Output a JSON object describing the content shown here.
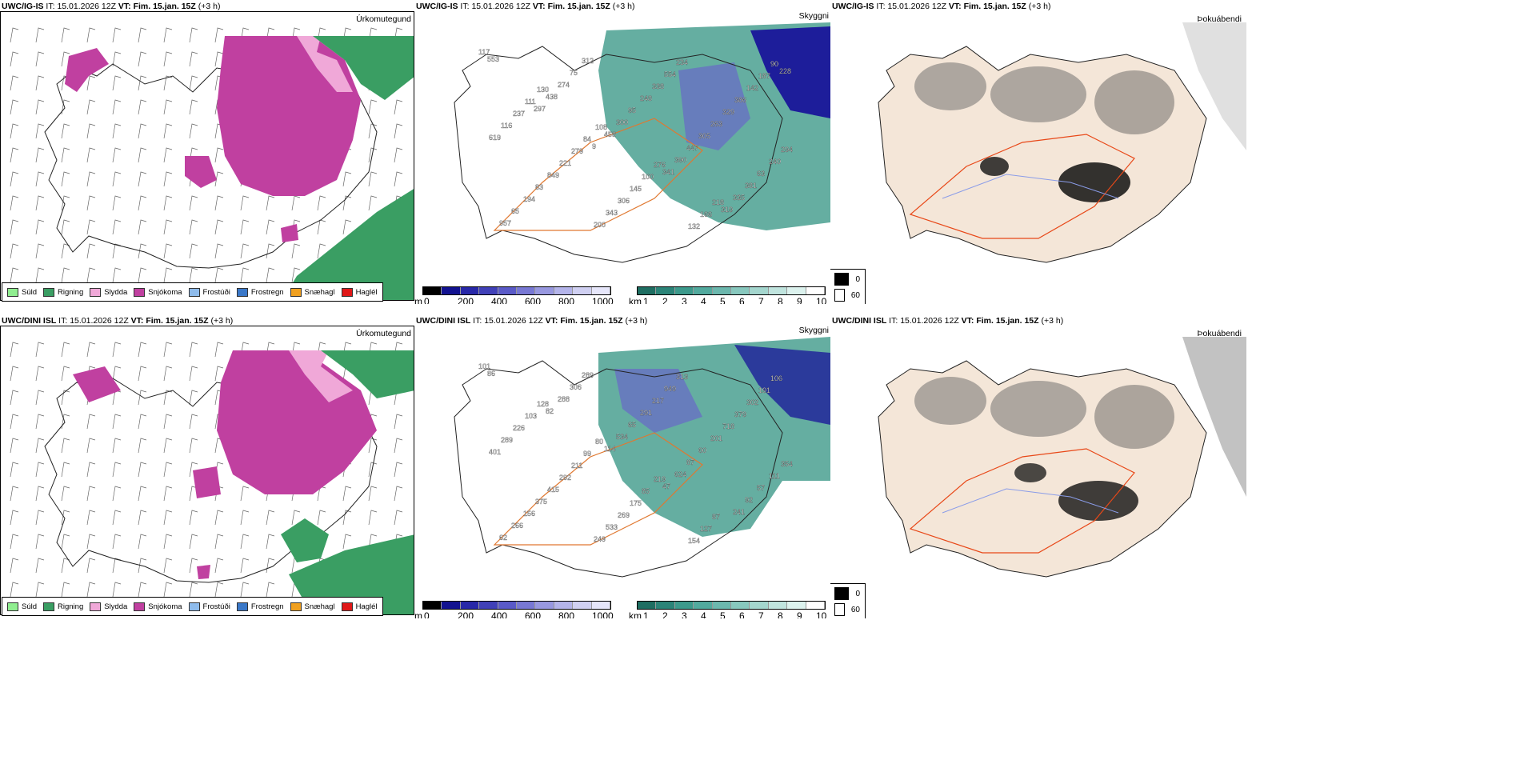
{
  "rows": [
    {
      "model": "UWC/IG-IS",
      "it_label": "IT:",
      "it_value": "15.01.2026 12Z",
      "vt_label": "VT:",
      "vt_value": "Fim. 15.jan. 15Z",
      "lead": "(+3 h)",
      "precip_labels": [
        "117",
        "130",
        "108",
        "276",
        "218",
        "90",
        "111",
        "84",
        "100",
        "166",
        "187",
        "237",
        "279",
        "145",
        "132",
        "142",
        "116",
        "221",
        "306",
        "234",
        "386",
        "619",
        "849",
        "343",
        "554",
        "329",
        "294",
        "83",
        "200",
        "338",
        "263",
        "240",
        "194",
        "312",
        "248",
        "305",
        "63",
        "65",
        "75",
        "95",
        "447",
        "381",
        "957",
        "274",
        "300",
        "390",
        "335",
        "553",
        "438",
        "458",
        "341",
        "319",
        "228",
        "297",
        "9"
      ]
    },
    {
      "model": "UWC/DINI ISL",
      "it_label": "IT:",
      "it_value": "15.01.2026 12Z",
      "vt_label": "VT:",
      "vt_value": "Fim. 15.jan. 15Z",
      "lead": "(+3 h)",
      "precip_labels": [
        "101",
        "128",
        "80",
        "219",
        "87",
        "106",
        "103",
        "99",
        "85",
        "127",
        "191",
        "226",
        "211",
        "175",
        "154",
        "302",
        "289",
        "292",
        "269",
        "313",
        "379",
        "401",
        "415",
        "533",
        "949",
        "718",
        "354",
        "375",
        "249",
        "217",
        "201",
        "111",
        "156",
        "289",
        "291",
        "60",
        "57",
        "266",
        "306",
        "65",
        "87",
        "92",
        "62",
        "288",
        "534",
        "624",
        "241",
        "86",
        "82",
        "114",
        "47"
      ]
    }
  ],
  "titles": {
    "precip_type": "Úrkomutegund",
    "visibility": "Skyggni",
    "fog": "Þokuábendi"
  },
  "precip_legend": [
    {
      "label": "Súld",
      "color": "#90ee90"
    },
    {
      "label": "Rigning",
      "color": "#3a9e63"
    },
    {
      "label": "Slydda",
      "color": "#f0a8d8"
    },
    {
      "label": "Snjókoma",
      "color": "#c040a0"
    },
    {
      "label": "Frostúði",
      "color": "#8fbcec"
    },
    {
      "label": "Frostregn",
      "color": "#3a78c8"
    },
    {
      "label": "Snæhagl",
      "color": "#f0a020"
    },
    {
      "label": "Haglél",
      "color": "#e01818"
    }
  ],
  "ceiling_bar": {
    "unit": "m",
    "ticks": [
      "0",
      "200",
      "400",
      "600",
      "800",
      "1000"
    ],
    "colors": [
      "#000000",
      "#121290",
      "#2828a8",
      "#4040b8",
      "#5a5ac8",
      "#7878d4",
      "#9898e0",
      "#b4b4ea",
      "#d0d0f2",
      "#e6e6fa"
    ]
  },
  "visibility_bar": {
    "unit": "km",
    "ticks": [
      "1",
      "2",
      "3",
      "4",
      "5",
      "6",
      "7",
      "8",
      "9",
      "10"
    ],
    "colors": [
      "#1f6e62",
      "#2b8478",
      "#3c9a8c",
      "#52aa9e",
      "#6cb8ae",
      "#88c8be",
      "#a4d6ce",
      "#c0e4de",
      "#dcf2ee",
      "#ffffff"
    ]
  },
  "fog_legend": [
    {
      "label": "0",
      "color": "#000000"
    },
    {
      "label": "60",
      "color": "#ffffff"
    }
  ],
  "colors": {
    "snow": "#c040a0",
    "sleet": "#f0a8d8",
    "rain": "#3a9e63",
    "land_fog": "#f4e6d8",
    "roads": "#e07830",
    "fog_roads": "#e84818",
    "rivers": "#8a9ce8",
    "vis_fill": "#4aa090",
    "ceiling": "#3a3ab0"
  }
}
